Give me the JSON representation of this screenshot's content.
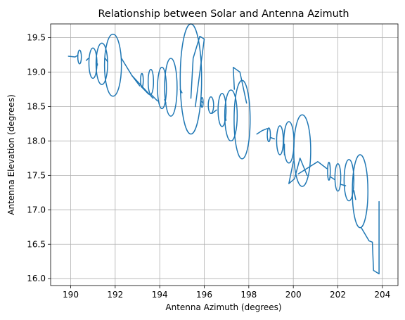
{
  "chart_data": {
    "type": "line",
    "title": "Relationship between Solar and Antenna Azimuth",
    "xlabel": "Antenna Azimuth (degrees)",
    "ylabel": "Antenna Elevation (degrees)",
    "xlim": [
      189.1,
      204.7
    ],
    "ylim": [
      15.9,
      19.7
    ],
    "xticks": [
      "190",
      "192",
      "194",
      "196",
      "198",
      "200",
      "202",
      "204"
    ],
    "yticks": [
      "16.0",
      "16.5",
      "17.0",
      "17.5",
      "18.0",
      "18.5",
      "19.0",
      "19.5"
    ],
    "grid": true,
    "series_color": "#1f77b4",
    "series": [
      {
        "loops": [
          {
            "cx": 190.4,
            "cy": 19.22,
            "rx": 0.08,
            "ry": 0.1
          },
          {
            "cx": 191.0,
            "cy": 19.13,
            "rx": 0.18,
            "ry": 0.22
          },
          {
            "cx": 191.4,
            "cy": 19.12,
            "rx": 0.26,
            "ry": 0.3
          },
          {
            "cx": 191.9,
            "cy": 19.1,
            "rx": 0.38,
            "ry": 0.45
          },
          {
            "cx": 193.2,
            "cy": 18.88,
            "rx": 0.06,
            "ry": 0.1
          },
          {
            "cx": 193.6,
            "cy": 18.86,
            "rx": 0.12,
            "ry": 0.18
          },
          {
            "cx": 194.1,
            "cy": 18.77,
            "rx": 0.2,
            "ry": 0.3
          },
          {
            "cx": 194.5,
            "cy": 18.78,
            "rx": 0.28,
            "ry": 0.42
          },
          {
            "cx": 195.4,
            "cy": 18.9,
            "rx": 0.48,
            "ry": 0.8
          },
          {
            "cx": 195.9,
            "cy": 18.56,
            "rx": 0.05,
            "ry": 0.07
          },
          {
            "cx": 196.3,
            "cy": 18.52,
            "rx": 0.12,
            "ry": 0.12
          },
          {
            "cx": 196.8,
            "cy": 18.45,
            "rx": 0.18,
            "ry": 0.24
          },
          {
            "cx": 197.2,
            "cy": 18.37,
            "rx": 0.28,
            "ry": 0.37
          },
          {
            "cx": 197.7,
            "cy": 18.31,
            "rx": 0.36,
            "ry": 0.57
          },
          {
            "cx": 198.9,
            "cy": 18.09,
            "rx": 0.07,
            "ry": 0.1
          },
          {
            "cx": 199.4,
            "cy": 18.01,
            "rx": 0.15,
            "ry": 0.21
          },
          {
            "cx": 199.8,
            "cy": 17.98,
            "rx": 0.23,
            "ry": 0.3
          },
          {
            "cx": 200.4,
            "cy": 17.86,
            "rx": 0.38,
            "ry": 0.52
          },
          {
            "cx": 201.6,
            "cy": 17.56,
            "rx": 0.06,
            "ry": 0.13
          },
          {
            "cx": 202.0,
            "cy": 17.47,
            "rx": 0.13,
            "ry": 0.2
          },
          {
            "cx": 202.5,
            "cy": 17.43,
            "rx": 0.22,
            "ry": 0.3
          },
          {
            "cx": 203.0,
            "cy": 17.27,
            "rx": 0.35,
            "ry": 0.53
          }
        ],
        "connectors": [
          [
            [
              189.9,
              19.23
            ],
            [
              190.2,
              19.22
            ],
            [
              190.3,
              19.24
            ]
          ],
          [
            [
              190.7,
              19.17
            ],
            [
              190.8,
              19.2
            ]
          ],
          [
            [
              191.2,
              19.1
            ],
            [
              191.2,
              19.12
            ]
          ],
          [
            [
              191.66,
              19.15
            ],
            [
              191.55,
              19.2
            ]
          ],
          [
            [
              192.28,
              19.2
            ],
            [
              192.75,
              18.95
            ],
            [
              193.1,
              18.8
            ]
          ],
          [
            [
              192.75,
              18.95
            ],
            [
              193.7,
              18.62
            ]
          ],
          [
            [
              193.2,
              18.78
            ],
            [
              193.5,
              18.68
            ]
          ],
          [
            [
              193.6,
              18.68
            ],
            [
              193.9,
              18.58
            ]
          ],
          [
            [
              194.22,
              18.6
            ],
            [
              194.28,
              18.55
            ]
          ],
          [
            [
              194.92,
              18.75
            ],
            [
              195.0,
              18.7
            ]
          ],
          [
            [
              195.4,
              18.62
            ],
            [
              195.5,
              19.2
            ],
            [
              195.8,
              19.52
            ],
            [
              196.0,
              19.48
            ],
            [
              195.6,
              18.5
            ]
          ],
          [
            [
              195.85,
              18.58
            ],
            [
              195.95,
              18.55
            ]
          ],
          [
            [
              196.35,
              18.4
            ],
            [
              196.55,
              18.45
            ]
          ],
          [
            [
              196.95,
              18.35
            ],
            [
              196.98,
              18.3
            ]
          ],
          [
            [
              197.35,
              18.75
            ],
            [
              197.3,
              19.07
            ],
            [
              197.6,
              19.0
            ],
            [
              197.9,
              18.55
            ]
          ],
          [
            [
              198.36,
              18.1
            ],
            [
              198.6,
              18.15
            ],
            [
              198.83,
              18.18
            ]
          ],
          [
            [
              198.97,
              18.05
            ],
            [
              199.15,
              18.03
            ]
          ],
          [
            [
              199.6,
              17.95
            ],
            [
              199.6,
              17.8
            ]
          ],
          [
            [
              200.0,
              17.7
            ],
            [
              199.8,
              17.38
            ],
            [
              200.05,
              17.45
            ],
            [
              200.3,
              17.75
            ],
            [
              200.62,
              17.5
            ]
          ],
          [
            [
              200.22,
              17.52
            ],
            [
              200.9,
              17.66
            ],
            [
              201.1,
              17.7
            ],
            [
              201.5,
              17.6
            ]
          ],
          [
            [
              201.66,
              17.48
            ],
            [
              201.85,
              17.44
            ]
          ],
          [
            [
              202.13,
              17.37
            ],
            [
              202.35,
              17.35
            ]
          ],
          [
            [
              202.72,
              17.28
            ],
            [
              202.8,
              17.15
            ]
          ],
          [
            [
              203.05,
              16.74
            ],
            [
              203.4,
              16.55
            ],
            [
              203.55,
              16.53
            ],
            [
              203.6,
              16.12
            ],
            [
              203.85,
              16.07
            ],
            [
              203.85,
              17.12
            ]
          ]
        ]
      }
    ]
  }
}
